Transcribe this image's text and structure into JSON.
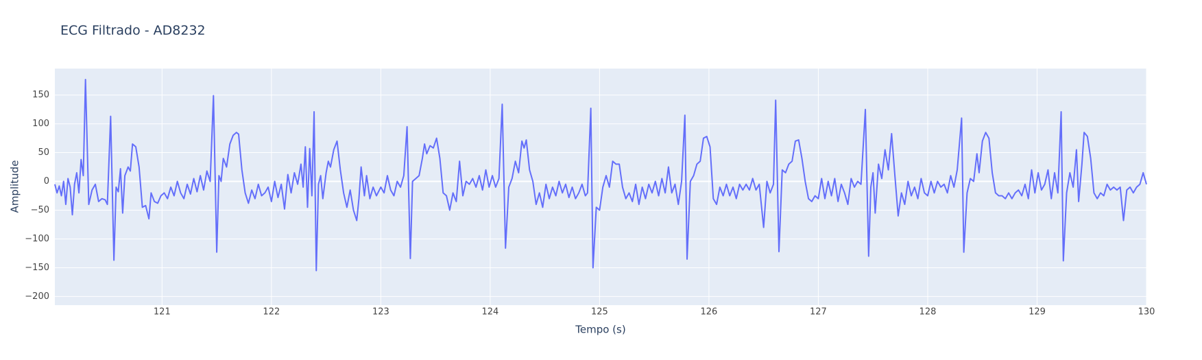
{
  "chart_data": {
    "type": "line",
    "title": "ECG Filtrado - AD8232",
    "x_label": "Tempo (s)",
    "y_label": "Amplitude",
    "color": "#636efa",
    "background": "#e5ecf6",
    "grid": true,
    "xlim": [
      120.02,
      130
    ],
    "ylim": [
      -215,
      196
    ],
    "xticks": [
      121,
      122,
      123,
      124,
      125,
      126,
      127,
      128,
      129,
      130
    ],
    "yticks": [
      {
        "value": -200,
        "label": "−200"
      },
      {
        "value": -150,
        "label": "−150"
      },
      {
        "value": -100,
        "label": "−100"
      },
      {
        "value": -50,
        "label": "−50"
      },
      0,
      50,
      100,
      150
    ],
    "x": [
      120.02,
      120.04,
      120.06,
      120.08,
      120.1,
      120.12,
      120.14,
      120.16,
      120.18,
      120.2,
      120.22,
      120.24,
      120.26,
      120.28,
      120.3,
      120.33,
      120.36,
      120.39,
      120.42,
      120.45,
      120.48,
      120.5,
      120.53,
      120.56,
      120.58,
      120.6,
      120.62,
      120.64,
      120.66,
      120.69,
      120.71,
      120.73,
      120.76,
      120.79,
      120.82,
      120.85,
      120.88,
      120.9,
      120.93,
      120.96,
      120.99,
      121.02,
      121.05,
      121.08,
      121.11,
      121.14,
      121.17,
      121.2,
      121.23,
      121.26,
      121.29,
      121.32,
      121.35,
      121.38,
      121.41,
      121.44,
      121.47,
      121.5,
      121.52,
      121.54,
      121.56,
      121.59,
      121.62,
      121.65,
      121.68,
      121.7,
      121.73,
      121.76,
      121.79,
      121.82,
      121.85,
      121.88,
      121.91,
      121.94,
      121.97,
      122,
      122.03,
      122.06,
      122.09,
      122.12,
      122.15,
      122.18,
      122.21,
      122.24,
      122.27,
      122.29,
      122.31,
      122.33,
      122.35,
      122.37,
      122.39,
      122.41,
      122.43,
      122.45,
      122.47,
      122.5,
      122.52,
      122.54,
      122.57,
      122.6,
      122.63,
      122.66,
      122.69,
      122.72,
      122.75,
      122.78,
      122.8,
      122.82,
      122.85,
      122.87,
      122.9,
      122.93,
      122.96,
      123,
      123.03,
      123.06,
      123.09,
      123.12,
      123.15,
      123.18,
      123.21,
      123.24,
      123.27,
      123.29,
      123.32,
      123.35,
      123.38,
      123.4,
      123.42,
      123.45,
      123.48,
      123.51,
      123.54,
      123.57,
      123.6,
      123.63,
      123.66,
      123.69,
      123.72,
      123.75,
      123.78,
      123.81,
      123.84,
      123.87,
      123.9,
      123.93,
      123.96,
      123.99,
      124.02,
      124.05,
      124.08,
      124.11,
      124.14,
      124.17,
      124.2,
      124.23,
      124.26,
      124.29,
      124.31,
      124.33,
      124.36,
      124.39,
      124.42,
      124.45,
      124.48,
      124.51,
      124.54,
      124.57,
      124.6,
      124.63,
      124.66,
      124.69,
      124.72,
      124.75,
      124.78,
      124.81,
      124.84,
      124.87,
      124.89,
      124.92,
      124.94,
      124.97,
      125,
      125.03,
      125.06,
      125.09,
      125.12,
      125.15,
      125.18,
      125.21,
      125.24,
      125.27,
      125.3,
      125.33,
      125.36,
      125.39,
      125.42,
      125.45,
      125.48,
      125.51,
      125.54,
      125.57,
      125.6,
      125.63,
      125.66,
      125.69,
      125.72,
      125.75,
      125.78,
      125.8,
      125.83,
      125.86,
      125.89,
      125.92,
      125.95,
      125.98,
      126.01,
      126.04,
      126.07,
      126.1,
      126.13,
      126.16,
      126.19,
      126.22,
      126.25,
      126.28,
      126.31,
      126.34,
      126.37,
      126.4,
      126.43,
      126.46,
      126.5,
      126.53,
      126.56,
      126.59,
      126.61,
      126.64,
      126.67,
      126.7,
      126.73,
      126.76,
      126.79,
      126.82,
      126.85,
      126.88,
      126.91,
      126.94,
      126.97,
      127,
      127.03,
      127.06,
      127.09,
      127.12,
      127.15,
      127.18,
      127.21,
      127.24,
      127.27,
      127.3,
      127.33,
      127.36,
      127.39,
      127.43,
      127.46,
      127.48,
      127.5,
      127.52,
      127.55,
      127.58,
      127.61,
      127.64,
      127.67,
      127.7,
      127.73,
      127.76,
      127.79,
      127.82,
      127.85,
      127.88,
      127.91,
      127.94,
      127.97,
      128,
      128.03,
      128.06,
      128.09,
      128.12,
      128.15,
      128.18,
      128.21,
      128.24,
      128.27,
      128.31,
      128.33,
      128.36,
      128.39,
      128.42,
      128.45,
      128.47,
      128.5,
      128.53,
      128.56,
      128.59,
      128.62,
      128.65,
      128.68,
      128.71,
      128.74,
      128.77,
      128.8,
      128.83,
      128.86,
      128.89,
      128.92,
      128.95,
      128.98,
      129.01,
      129.04,
      129.07,
      129.1,
      129.13,
      129.16,
      129.19,
      129.22,
      129.24,
      129.27,
      129.3,
      129.33,
      129.36,
      129.38,
      129.41,
      129.43,
      129.46,
      129.49,
      129.52,
      129.55,
      129.58,
      129.61,
      129.64,
      129.67,
      129.7,
      129.73,
      129.76,
      129.79,
      129.82,
      129.85,
      129.88,
      129.91,
      129.94,
      129.97,
      130
    ],
    "values": [
      -5,
      -20,
      -8,
      -25,
      0,
      -40,
      5,
      -10,
      -58,
      -5,
      15,
      -20,
      38,
      10,
      177,
      -40,
      -15,
      -5,
      -35,
      -30,
      -32,
      -40,
      113,
      -137,
      -10,
      -18,
      22,
      -55,
      10,
      25,
      18,
      65,
      60,
      25,
      -45,
      -42,
      -65,
      -20,
      -35,
      -38,
      -25,
      -20,
      -30,
      -10,
      -25,
      0,
      -20,
      -30,
      -5,
      -22,
      5,
      -18,
      10,
      -15,
      18,
      0,
      149,
      -123,
      10,
      0,
      40,
      25,
      65,
      80,
      85,
      82,
      20,
      -20,
      -38,
      -15,
      -30,
      -5,
      -25,
      -20,
      -10,
      -35,
      0,
      -28,
      -5,
      -48,
      12,
      -20,
      15,
      -5,
      30,
      -10,
      60,
      -45,
      57,
      -25,
      121,
      -155,
      -5,
      10,
      -30,
      15,
      35,
      25,
      55,
      70,
      20,
      -20,
      -45,
      -15,
      -50,
      -68,
      -30,
      25,
      -25,
      10,
      -30,
      -10,
      -25,
      -10,
      -20,
      10,
      -15,
      -25,
      0,
      -10,
      10,
      95,
      -134,
      0,
      5,
      10,
      40,
      65,
      48,
      62,
      58,
      75,
      40,
      -20,
      -25,
      -50,
      -20,
      -35,
      35,
      -25,
      0,
      -5,
      5,
      -10,
      10,
      -15,
      20,
      -10,
      10,
      -10,
      5,
      134,
      -116,
      -10,
      5,
      35,
      15,
      70,
      58,
      72,
      20,
      0,
      -40,
      -20,
      -45,
      -5,
      -30,
      -10,
      -25,
      0,
      -20,
      -5,
      -28,
      -10,
      -30,
      -20,
      -5,
      -25,
      -20,
      127,
      -150,
      -45,
      -50,
      -10,
      10,
      -10,
      35,
      30,
      30,
      -10,
      -30,
      -20,
      -35,
      -5,
      -40,
      -10,
      -30,
      -5,
      -20,
      0,
      -25,
      5,
      -20,
      25,
      -20,
      -5,
      -40,
      0,
      115,
      -135,
      0,
      10,
      30,
      35,
      75,
      78,
      60,
      -30,
      -40,
      -10,
      -25,
      -5,
      -25,
      -10,
      -30,
      -5,
      -15,
      -5,
      -15,
      5,
      -15,
      -5,
      -80,
      0,
      -20,
      -5,
      141,
      -122,
      20,
      15,
      30,
      35,
      70,
      72,
      40,
      0,
      -30,
      -35,
      -25,
      -30,
      5,
      -30,
      0,
      -25,
      5,
      -35,
      -5,
      -20,
      -40,
      5,
      -10,
      0,
      -5,
      125,
      -130,
      -10,
      15,
      -55,
      30,
      5,
      55,
      20,
      83,
      10,
      -60,
      -20,
      -40,
      0,
      -25,
      -10,
      -30,
      5,
      -20,
      -25,
      0,
      -20,
      0,
      -10,
      -5,
      -20,
      10,
      -10,
      20,
      110,
      -123,
      -20,
      5,
      0,
      48,
      15,
      70,
      85,
      75,
      15,
      -20,
      -25,
      -25,
      -30,
      -20,
      -30,
      -20,
      -15,
      -25,
      -5,
      -30,
      20,
      -20,
      15,
      -15,
      -5,
      20,
      -30,
      15,
      -20,
      121,
      -138,
      -20,
      15,
      -10,
      55,
      -35,
      30,
      85,
      78,
      40,
      -20,
      -30,
      -20,
      -25,
      -5,
      -15,
      -10,
      -15,
      -10,
      -68,
      -15,
      -10,
      -20,
      -10,
      -5,
      15,
      -5
    ]
  }
}
